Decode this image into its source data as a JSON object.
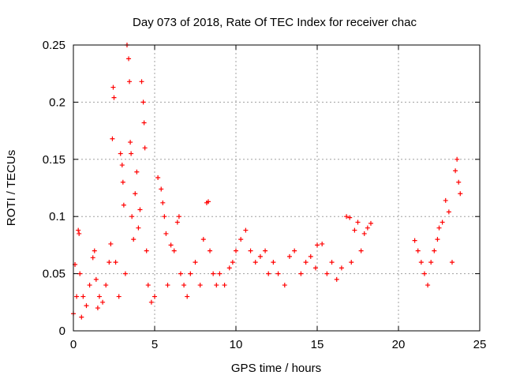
{
  "chart_data": {
    "type": "scatter",
    "title": "Day 073 of 2018, Rate Of TEC Index for receiver chac",
    "xlabel": "GPS time / hours",
    "ylabel": "ROTI / TECUs",
    "xlim": [
      0,
      25
    ],
    "ylim": [
      0,
      0.25
    ],
    "xticks": [
      "0",
      "5",
      "10",
      "15",
      "20",
      "25"
    ],
    "yticks": [
      "0",
      "0.05",
      "0.1",
      "0.15",
      "0.2",
      "0.25"
    ],
    "grid": true,
    "marker": "+",
    "color": "#ff0000",
    "data_gap": [
      18.4,
      21.0
    ],
    "series": [
      {
        "x": [
          0.0,
          0.1,
          0.2,
          0.3,
          0.35,
          0.4,
          0.5,
          0.6,
          0.8,
          1.0,
          1.2,
          1.3,
          1.4,
          1.5,
          1.6,
          1.8,
          2.0,
          2.2,
          2.3,
          2.4,
          2.45,
          2.5,
          2.6,
          2.8,
          2.9,
          3.0,
          3.05,
          3.1,
          3.2,
          3.3,
          3.4,
          3.45,
          3.5,
          3.55,
          3.6,
          3.7,
          3.8,
          3.9,
          4.0,
          4.1,
          4.2,
          4.3,
          4.35,
          4.4,
          4.5,
          4.6,
          4.8,
          5.0,
          5.2,
          5.4,
          5.5,
          5.6,
          5.7,
          5.8,
          6.0,
          6.2,
          6.4,
          6.5,
          6.6,
          6.8,
          7.0,
          7.2,
          7.5,
          7.8,
          8.0,
          8.2,
          8.3,
          8.4,
          8.6,
          8.8,
          9.0,
          9.3,
          9.6,
          9.8,
          10.0,
          10.3,
          10.6,
          10.9,
          11.2,
          11.5,
          11.8,
          12.0,
          12.3,
          12.6,
          13.0,
          13.3,
          13.6,
          14.0,
          14.3,
          14.6,
          14.9,
          15.0,
          15.3,
          15.6,
          15.9,
          16.2,
          16.5,
          16.8,
          17.0,
          17.1,
          17.3,
          17.5,
          17.7,
          17.9,
          18.1,
          18.3,
          21.0,
          21.2,
          21.4,
          21.6,
          21.8,
          22.0,
          22.2,
          22.4,
          22.5,
          22.7,
          22.9,
          23.1,
          23.3,
          23.5,
          23.6,
          23.7,
          23.8
        ],
        "y": [
          0.015,
          0.058,
          0.03,
          0.088,
          0.085,
          0.05,
          0.012,
          0.03,
          0.022,
          0.04,
          0.064,
          0.07,
          0.045,
          0.02,
          0.03,
          0.025,
          0.04,
          0.06,
          0.076,
          0.168,
          0.213,
          0.204,
          0.06,
          0.03,
          0.155,
          0.145,
          0.13,
          0.11,
          0.05,
          0.25,
          0.238,
          0.218,
          0.165,
          0.155,
          0.1,
          0.08,
          0.12,
          0.139,
          0.09,
          0.106,
          0.218,
          0.2,
          0.182,
          0.16,
          0.07,
          0.04,
          0.025,
          0.03,
          0.134,
          0.124,
          0.112,
          0.1,
          0.085,
          0.04,
          0.075,
          0.07,
          0.095,
          0.1,
          0.05,
          0.04,
          0.03,
          0.05,
          0.06,
          0.04,
          0.08,
          0.112,
          0.113,
          0.07,
          0.05,
          0.04,
          0.05,
          0.04,
          0.055,
          0.06,
          0.07,
          0.08,
          0.088,
          0.07,
          0.06,
          0.065,
          0.07,
          0.05,
          0.06,
          0.05,
          0.04,
          0.065,
          0.07,
          0.05,
          0.06,
          0.065,
          0.055,
          0.075,
          0.076,
          0.05,
          0.06,
          0.045,
          0.055,
          0.1,
          0.099,
          0.06,
          0.088,
          0.095,
          0.07,
          0.085,
          0.09,
          0.094,
          0.079,
          0.07,
          0.06,
          0.05,
          0.04,
          0.06,
          0.07,
          0.08,
          0.09,
          0.095,
          0.114,
          0.104,
          0.06,
          0.14,
          0.15,
          0.13,
          0.12
        ]
      }
    ]
  }
}
